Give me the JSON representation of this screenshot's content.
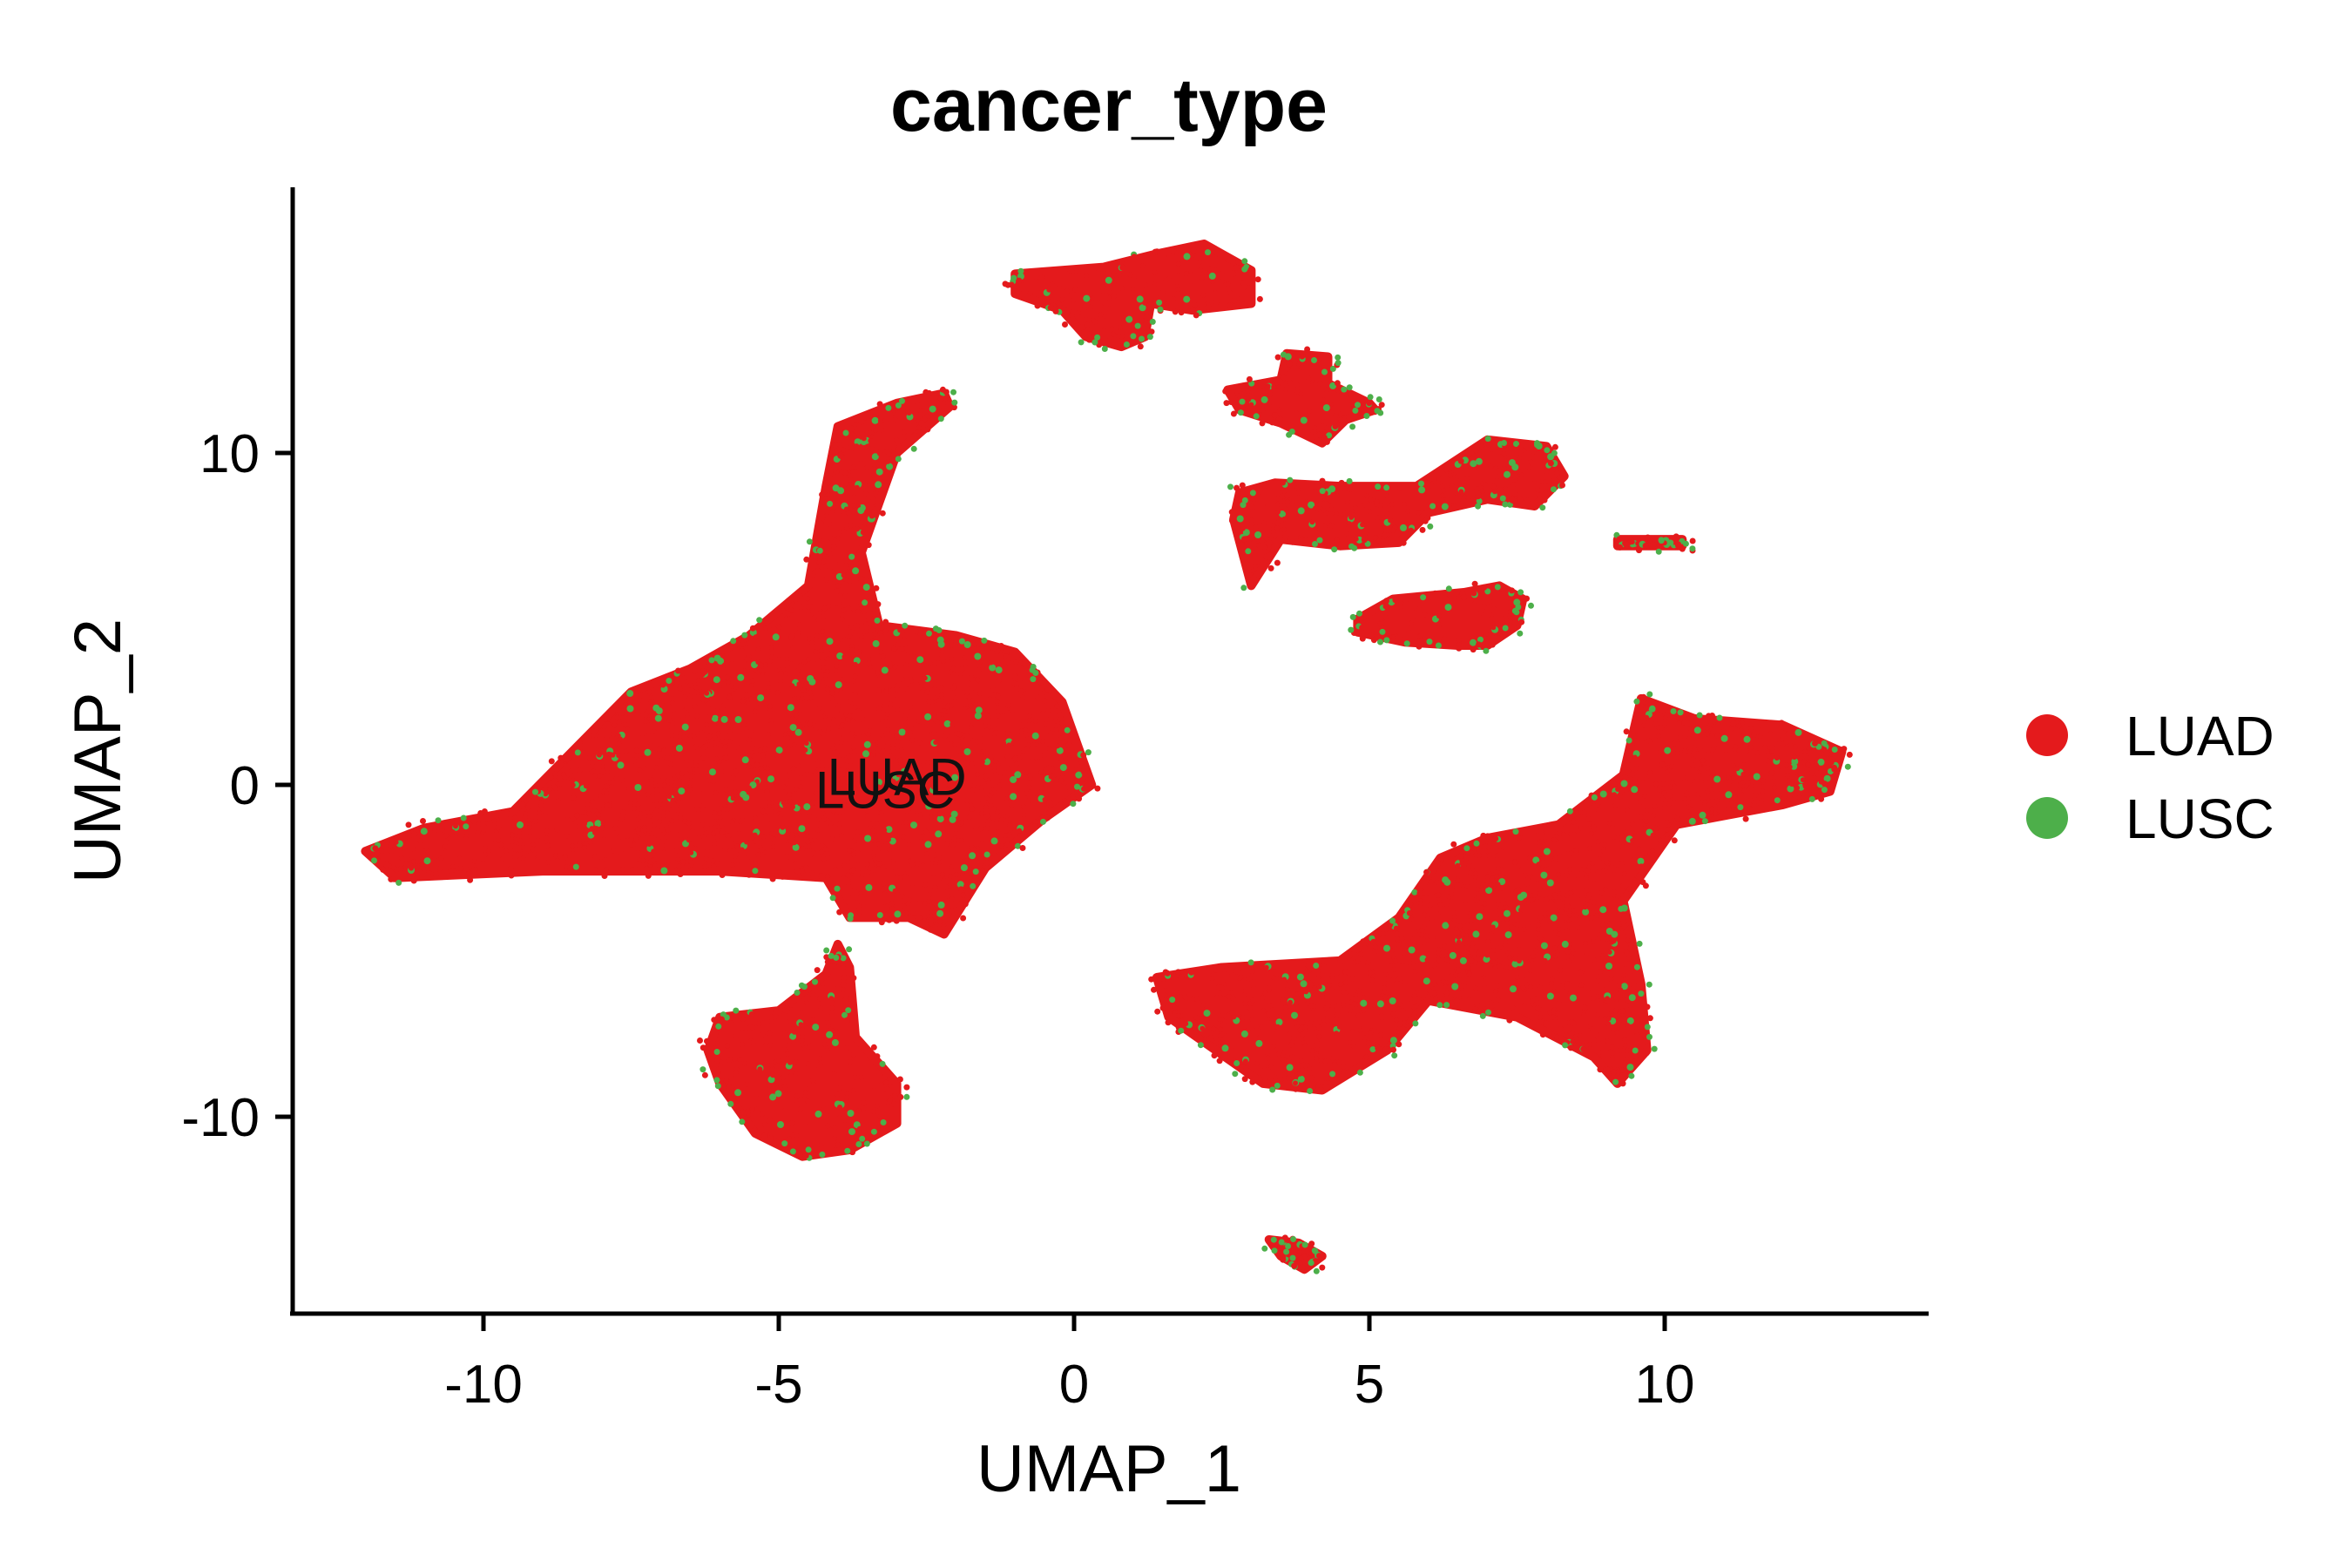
{
  "chart_data": {
    "type": "scatter",
    "title": "cancer_type",
    "xlabel": "UMAP_1",
    "ylabel": "UMAP_2",
    "xlim": [
      -13.2,
      14.5
    ],
    "ylim": [
      -16,
      18
    ],
    "x_ticks": [
      -10,
      -5,
      0,
      5,
      10
    ],
    "x_tick_labels": [
      "-10",
      "-5",
      "0",
      "5",
      "10"
    ],
    "y_ticks": [
      -10,
      0,
      10
    ],
    "y_tick_labels": [
      "-10",
      "0",
      "10"
    ],
    "grid": false,
    "legend_position": "right",
    "series": [
      {
        "name": "LUAD",
        "color": "#E41A1C"
      },
      {
        "name": "LUSC",
        "color": "#4DAF4A"
      }
    ],
    "clusters": [
      {
        "polygon": [
          [
            -12,
            -2
          ],
          [
            -11,
            -1.3
          ],
          [
            -9.5,
            -0.8
          ],
          [
            -8.5,
            1
          ],
          [
            -7.5,
            2.8
          ],
          [
            -6.5,
            3.5
          ],
          [
            -5.5,
            4.5
          ],
          [
            -4.5,
            6
          ],
          [
            -4.2,
            9
          ],
          [
            -4,
            10.8
          ],
          [
            -3,
            11.5
          ],
          [
            -2.2,
            11.8
          ],
          [
            -2.1,
            11.4
          ],
          [
            -3,
            10
          ],
          [
            -3.6,
            7
          ],
          [
            -3.3,
            4.8
          ],
          [
            -2,
            4.5
          ],
          [
            -1,
            4
          ],
          [
            -0.2,
            2.5
          ],
          [
            0.3,
            0
          ],
          [
            -0.5,
            -1
          ],
          [
            -1.5,
            -2.5
          ],
          [
            -2.2,
            -4.5
          ],
          [
            -2.8,
            -4
          ],
          [
            -3.8,
            -4
          ],
          [
            -4.2,
            -2.8
          ],
          [
            -6,
            -2.6
          ],
          [
            -9,
            -2.6
          ],
          [
            -11.5,
            -2.8
          ]
        ],
        "luad_fraction": 0.93
      },
      {
        "polygon": [
          [
            -6,
            -7
          ],
          [
            -5,
            -6.8
          ],
          [
            -4.2,
            -5.7
          ],
          [
            -4,
            -4.8
          ],
          [
            -3.8,
            -5.5
          ],
          [
            -3.7,
            -7.6
          ],
          [
            -3,
            -9
          ],
          [
            -3,
            -10.2
          ],
          [
            -3.8,
            -11
          ],
          [
            -4.6,
            -11.2
          ],
          [
            -5.4,
            -10.5
          ],
          [
            -6,
            -9
          ],
          [
            -6.2,
            -8
          ]
        ],
        "luad_fraction": 0.88
      },
      {
        "polygon": [
          [
            1.4,
            -5.8
          ],
          [
            2.5,
            -5.5
          ],
          [
            4.5,
            -5.3
          ],
          [
            5.5,
            -4
          ],
          [
            6.2,
            -2.2
          ],
          [
            7,
            -1.6
          ],
          [
            8.2,
            -1.2
          ],
          [
            9.3,
            0.3
          ],
          [
            9.6,
            2.6
          ],
          [
            10.5,
            2
          ],
          [
            12,
            1.8
          ],
          [
            13,
            1
          ],
          [
            12.8,
            -0.2
          ],
          [
            12,
            -0.6
          ],
          [
            10.2,
            -1.2
          ],
          [
            9.3,
            -3.5
          ],
          [
            9.6,
            -6
          ],
          [
            9.7,
            -8
          ],
          [
            9.2,
            -9
          ],
          [
            8.8,
            -8.2
          ],
          [
            7.5,
            -7
          ],
          [
            6,
            -6.5
          ],
          [
            5.3,
            -8
          ],
          [
            4.2,
            -9.2
          ],
          [
            3.2,
            -9
          ],
          [
            2.4,
            -8
          ],
          [
            1.6,
            -7
          ]
        ],
        "luad_fraction": 0.92
      },
      {
        "polygon": [
          [
            -1,
            15.4
          ],
          [
            0.5,
            15.6
          ],
          [
            1.4,
            16
          ],
          [
            2.2,
            16.3
          ],
          [
            3,
            15.5
          ],
          [
            3,
            14.5
          ],
          [
            2,
            14.3
          ],
          [
            1.3,
            14.5
          ],
          [
            1.2,
            13.5
          ],
          [
            0.8,
            13.2
          ],
          [
            0.2,
            13.5
          ],
          [
            -0.2,
            14.3
          ],
          [
            -1,
            14.8
          ]
        ],
        "luad_fraction": 0.93
      },
      {
        "polygon": [
          [
            2.6,
            11.9
          ],
          [
            3.5,
            12.2
          ],
          [
            3.6,
            13
          ],
          [
            4.3,
            12.9
          ],
          [
            4.3,
            12.1
          ],
          [
            5,
            11.5
          ],
          [
            5.1,
            11.3
          ],
          [
            4.6,
            11
          ],
          [
            4.2,
            10.3
          ],
          [
            3.5,
            10.9
          ],
          [
            2.8,
            11.3
          ]
        ],
        "luad_fraction": 0.9
      },
      {
        "polygon": [
          [
            2.8,
            8.8
          ],
          [
            3.4,
            9.1
          ],
          [
            4.5,
            9
          ],
          [
            5.8,
            9
          ],
          [
            7,
            10.4
          ],
          [
            8,
            10.2
          ],
          [
            8.3,
            9.3
          ],
          [
            7.8,
            8.4
          ],
          [
            7,
            8.6
          ],
          [
            6,
            8.2
          ],
          [
            5.5,
            7.3
          ],
          [
            4.5,
            7.2
          ],
          [
            3.5,
            7.4
          ],
          [
            3,
            6
          ],
          [
            2.7,
            8
          ]
        ],
        "luad_fraction": 0.87
      },
      {
        "polygon": [
          [
            4.8,
            5
          ],
          [
            5.4,
            5.6
          ],
          [
            6.6,
            5.8
          ],
          [
            7.2,
            6
          ],
          [
            7.6,
            5.6
          ],
          [
            7.5,
            4.8
          ],
          [
            7,
            4.2
          ],
          [
            6.5,
            4.2
          ],
          [
            5.6,
            4.3
          ],
          [
            4.8,
            4.6
          ]
        ],
        "luad_fraction": 0.9
      },
      {
        "polygon": [
          [
            9.2,
            7.4
          ],
          [
            10.3,
            7.4
          ],
          [
            10.3,
            7.2
          ],
          [
            9.2,
            7.2
          ]
        ],
        "luad_fraction": 0.85
      },
      {
        "polygon": [
          [
            3.3,
            -13.7
          ],
          [
            3.8,
            -13.8
          ],
          [
            4.2,
            -14.2
          ],
          [
            3.9,
            -14.6
          ],
          [
            3.5,
            -14.2
          ]
        ],
        "luad_fraction": 0.85
      }
    ],
    "annotations": [
      {
        "text": "LUAD",
        "x": -3.0,
        "y": -0.3
      },
      {
        "text": "LUSC",
        "x": -3.2,
        "y": -0.7
      }
    ]
  }
}
